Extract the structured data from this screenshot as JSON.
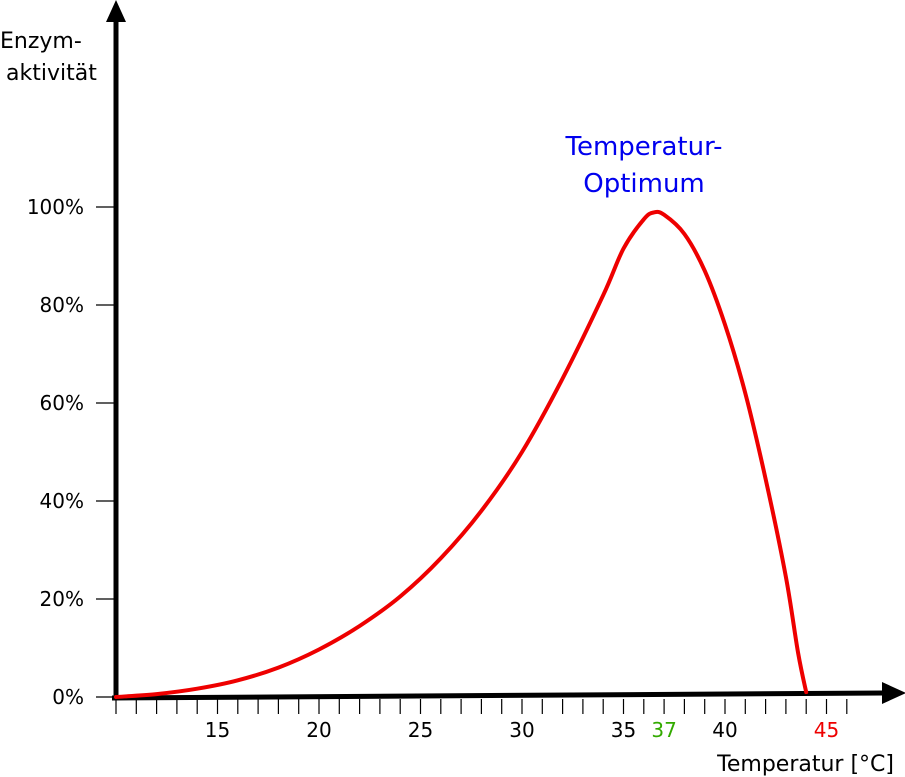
{
  "chart_data": {
    "type": "line",
    "title": "",
    "ylabel_lines": [
      "Enzym-",
      "aktivität"
    ],
    "xlabel": "Temperatur [°C]",
    "y_ticks": [
      {
        "value": 0,
        "label": "0%"
      },
      {
        "value": 20,
        "label": "20%"
      },
      {
        "value": 40,
        "label": "40%"
      },
      {
        "value": 60,
        "label": "60%"
      },
      {
        "value": 80,
        "label": "80%"
      },
      {
        "value": 100,
        "label": "100%"
      }
    ],
    "x_ticks": [
      {
        "value": 15,
        "label": "15",
        "color": "#000000"
      },
      {
        "value": 20,
        "label": "20",
        "color": "#000000"
      },
      {
        "value": 25,
        "label": "25",
        "color": "#000000"
      },
      {
        "value": 30,
        "label": "30",
        "color": "#000000"
      },
      {
        "value": 35,
        "label": "35",
        "color": "#000000"
      },
      {
        "value": 37,
        "label": "37",
        "color": "#33aa00"
      },
      {
        "value": 40,
        "label": "40",
        "color": "#000000"
      },
      {
        "value": 45,
        "label": "45",
        "color": "#ee0000"
      }
    ],
    "annotation": {
      "lines": [
        "Temperatur-",
        "Optimum"
      ],
      "color": "#0000ee"
    },
    "series": [
      {
        "color": "#ee0000",
        "points": [
          [
            10,
            0
          ],
          [
            12,
            0.6
          ],
          [
            14,
            1.7
          ],
          [
            16,
            3.4
          ],
          [
            18,
            6
          ],
          [
            20,
            9.7
          ],
          [
            22,
            14.5
          ],
          [
            24,
            20.5
          ],
          [
            26,
            28.3
          ],
          [
            28,
            38
          ],
          [
            30,
            50
          ],
          [
            32,
            65
          ],
          [
            34,
            82
          ],
          [
            35,
            91.5
          ],
          [
            36,
            97.5
          ],
          [
            36.5,
            98.9
          ],
          [
            37,
            98.4
          ],
          [
            38,
            94.5
          ],
          [
            39,
            87
          ],
          [
            40,
            76
          ],
          [
            41,
            62
          ],
          [
            42,
            44.5
          ],
          [
            43,
            24.5
          ],
          [
            43.6,
            9
          ],
          [
            44,
            1
          ]
        ]
      }
    ],
    "xlim": [
      10,
      45
    ],
    "ylim": [
      0,
      100
    ]
  }
}
